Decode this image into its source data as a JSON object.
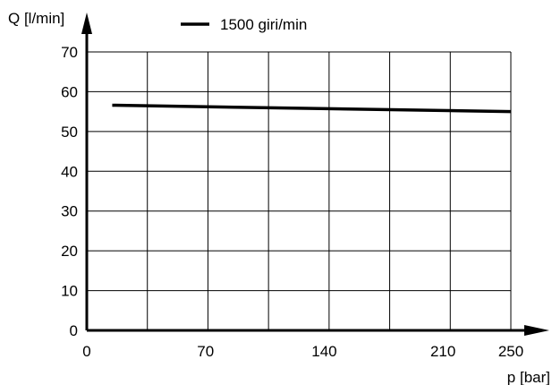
{
  "chart_data": {
    "type": "line",
    "xlabel": "p [bar]",
    "ylabel": "Q [l/min]",
    "xlim": [
      0,
      250
    ],
    "ylim": [
      0,
      70
    ],
    "x_tick_labels": [
      "0",
      "70",
      "140",
      "210",
      "250"
    ],
    "y_tick_labels": [
      "0",
      "10",
      "20",
      "30",
      "40",
      "50",
      "60",
      "70"
    ],
    "grid": true,
    "legend_position": "top",
    "series": [
      {
        "name": "1500 giri/min",
        "x": [
          15,
          250
        ],
        "y": [
          56.6,
          55.0
        ]
      }
    ]
  },
  "colors": {
    "line": "#000000",
    "grid": "#000000",
    "background": "#ffffff"
  }
}
